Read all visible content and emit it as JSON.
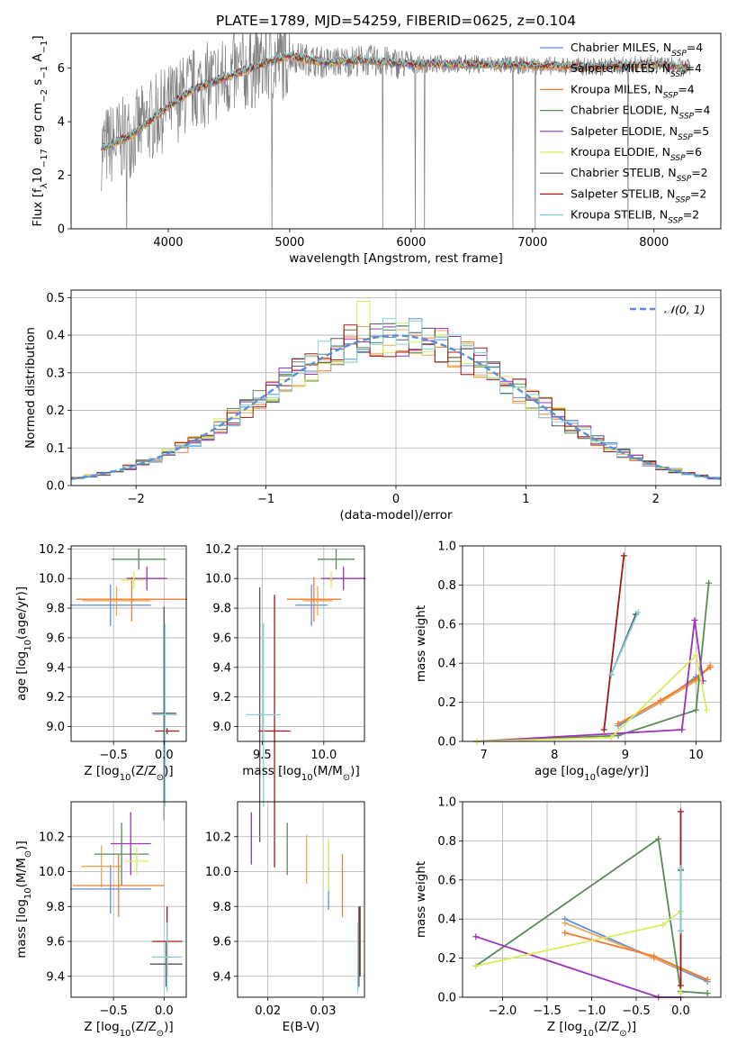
{
  "figure": {
    "title": "PLATE=1789, MJD=54259, FIBERID=0625, z=0.104",
    "models": [
      {
        "name": "Chabrier MILES",
        "nssp": "4",
        "color": "#5b8ee6"
      },
      {
        "name": "Salpeter MILES",
        "nssp": "4",
        "color": "#f0a850"
      },
      {
        "name": "Kroupa MILES",
        "nssp": "4",
        "color": "#f07c30"
      },
      {
        "name": "Chabrier ELODIE",
        "nssp": "4",
        "color": "#5a8a5a"
      },
      {
        "name": "Salpeter ELODIE",
        "nssp": "5",
        "color": "#9a34b8"
      },
      {
        "name": "Kroupa ELODIE",
        "nssp": "6",
        "color": "#d8ec5c"
      },
      {
        "name": "Chabrier STELIB",
        "nssp": "2",
        "color": "#555555"
      },
      {
        "name": "Salpeter STELIB",
        "nssp": "2",
        "color": "#a01818"
      },
      {
        "name": "Kroupa STELIB",
        "nssp": "2",
        "color": "#7fd4dc"
      }
    ]
  },
  "chart_data": [
    {
      "id": "spectrum",
      "type": "line",
      "xlabel": "wavelength [Angstrom, rest frame]",
      "ylabel_parts": [
        "Flux [f",
        "λ",
        "10",
        "−17",
        " erg cm",
        "−2",
        " s",
        "−1",
        " A",
        "−1",
        "]"
      ],
      "xlim": [
        3200,
        8550
      ],
      "ylim": [
        0,
        7.3
      ],
      "xticks": [
        4000,
        5000,
        6000,
        7000,
        8000
      ],
      "yticks": [
        0,
        2,
        4,
        6
      ],
      "series_note": "observed data (grey) with overlapping model fits",
      "continuum": [
        [
          3450,
          3.0
        ],
        [
          3700,
          3.5
        ],
        [
          3950,
          4.4
        ],
        [
          4200,
          5.2
        ],
        [
          4500,
          5.7
        ],
        [
          4800,
          6.2
        ],
        [
          5000,
          6.45
        ],
        [
          5300,
          6.2
        ],
        [
          5600,
          6.3
        ],
        [
          6000,
          6.15
        ],
        [
          6500,
          6.15
        ],
        [
          7000,
          6.1
        ],
        [
          7500,
          6.05
        ],
        [
          8000,
          6.15
        ],
        [
          8300,
          6.0
        ]
      ],
      "grid": false,
      "legend": "top-right"
    },
    {
      "id": "residuals",
      "type": "histogram",
      "xlabel": "(data-model)/error",
      "ylabel": "Normed distribution",
      "xlim": [
        -2.5,
        2.5
      ],
      "ylim": [
        0,
        0.52
      ],
      "xticks": [
        -2,
        -1,
        0,
        1,
        2
      ],
      "yticks": [
        0.0,
        0.1,
        0.2,
        0.3,
        0.4,
        0.5
      ],
      "reference_curve": "N(0,1)",
      "legend_label": "𝒩(0, 1)",
      "grid": true,
      "legend": "top-right"
    },
    {
      "id": "age_vs_Z",
      "type": "errorbar",
      "xlabel_parts": [
        "Z [log",
        "10",
        "(Z/Z",
        "⊙",
        ")]"
      ],
      "ylabel_parts": [
        "age  [log",
        "10",
        "(age/yr)]"
      ],
      "xlim": [
        -0.92,
        0.22
      ],
      "ylim": [
        8.9,
        10.22
      ],
      "xticks": [
        -0.5,
        0.0
      ],
      "xticklabels": [
        "−0.5",
        "0.0"
      ],
      "yticks": [
        9.0,
        9.2,
        9.4,
        9.6,
        9.8,
        10.0,
        10.2
      ],
      "points": [
        {
          "model": 0,
          "x": -0.53,
          "y": 9.82,
          "xerr": 0.4,
          "yerr": 0.14
        },
        {
          "model": 1,
          "x": -0.47,
          "y": 9.85,
          "xerr": 0.34,
          "yerr": 0.1
        },
        {
          "model": 2,
          "x": -0.32,
          "y": 9.86,
          "xerr": 0.55,
          "yerr": 0.15
        },
        {
          "model": 3,
          "x": -0.25,
          "y": 10.13,
          "xerr": 0.27,
          "yerr": 0.07
        },
        {
          "model": 4,
          "x": -0.17,
          "y": 10.0,
          "xerr": 0.2,
          "yerr": 0.08
        },
        {
          "model": 5,
          "x": -0.3,
          "y": 9.99,
          "xerr": 0.12,
          "yerr": 0.06
        },
        {
          "model": 6,
          "x": 0.0,
          "y": 9.09,
          "xerr": 0.12,
          "yerr": 0.72
        },
        {
          "model": 7,
          "x": 0.03,
          "y": 8.97,
          "xerr": 0.12,
          "yerr": 0.02
        },
        {
          "model": 8,
          "x": 0.01,
          "y": 9.08,
          "xerr": 0.12,
          "yerr": 0.62
        }
      ],
      "grid": true
    },
    {
      "id": "age_vs_mass",
      "type": "errorbar",
      "xlabel_parts": [
        "mass [log",
        "10",
        "(M/M",
        "⊙",
        ")]"
      ],
      "xlim": [
        9.3,
        10.33
      ],
      "ylim": [
        8.9,
        10.22
      ],
      "xticks": [
        9.5,
        10.0
      ],
      "xticklabels": [
        "9.5",
        "10.0"
      ],
      "yticks": [
        9.0,
        9.2,
        9.4,
        9.6,
        9.8,
        10.0,
        10.2
      ],
      "points": [
        {
          "model": 0,
          "x": 9.9,
          "y": 9.82,
          "xerr": 0.13,
          "yerr": 0.14
        },
        {
          "model": 1,
          "x": 9.95,
          "y": 9.85,
          "xerr": 0.12,
          "yerr": 0.1
        },
        {
          "model": 2,
          "x": 9.92,
          "y": 9.86,
          "xerr": 0.22,
          "yerr": 0.15
        },
        {
          "model": 3,
          "x": 10.1,
          "y": 10.13,
          "xerr": 0.15,
          "yerr": 0.07
        },
        {
          "model": 4,
          "x": 10.16,
          "y": 10.0,
          "xerr": 0.18,
          "yerr": 0.08
        },
        {
          "model": 5,
          "x": 10.06,
          "y": 9.99,
          "xerr": 0.02,
          "yerr": 0.06
        },
        {
          "model": 6,
          "x": 9.48,
          "y": 9.08,
          "xerr": 0.02,
          "yerr": 0.86
        },
        {
          "model": 7,
          "x": 9.6,
          "y": 8.97,
          "xerr": 0.13,
          "yerr": 0.92
        },
        {
          "model": 8,
          "x": 9.51,
          "y": 9.08,
          "xerr": 0.14,
          "yerr": 0.62
        }
      ],
      "grid": true
    },
    {
      "id": "massweight_vs_age",
      "type": "line",
      "xlabel_parts": [
        "age  [log",
        "10",
        "(age/yr)]"
      ],
      "ylabel": "mass weight",
      "xlim": [
        6.7,
        10.35
      ],
      "ylim": [
        0,
        1.0
      ],
      "xticks": [
        7,
        8,
        9,
        10
      ],
      "yticks": [
        0.0,
        0.2,
        0.4,
        0.6,
        0.8,
        1.0
      ],
      "series": [
        {
          "model": 0,
          "points": [
            [
              8.9,
              0.08
            ],
            [
              9.5,
              0.2
            ],
            [
              10.0,
              0.33
            ],
            [
              10.2,
              0.38
            ]
          ]
        },
        {
          "model": 1,
          "points": [
            [
              8.9,
              0.09
            ],
            [
              9.5,
              0.2
            ],
            [
              10.0,
              0.31
            ],
            [
              10.2,
              0.39
            ]
          ]
        },
        {
          "model": 2,
          "points": [
            [
              8.9,
              0.09
            ],
            [
              9.5,
              0.21
            ],
            [
              10.0,
              0.32
            ],
            [
              10.2,
              0.38
            ]
          ]
        },
        {
          "model": 3,
          "points": [
            [
              6.9,
              0.0
            ],
            [
              8.9,
              0.03
            ],
            [
              10.0,
              0.16
            ],
            [
              10.18,
              0.81
            ]
          ]
        },
        {
          "model": 4,
          "points": [
            [
              6.9,
              0.0
            ],
            [
              9.8,
              0.06
            ],
            [
              9.98,
              0.62
            ],
            [
              10.1,
              0.31
            ]
          ]
        },
        {
          "model": 5,
          "points": [
            [
              6.9,
              0.0
            ],
            [
              8.8,
              0.02
            ],
            [
              10.0,
              0.44
            ],
            [
              10.15,
              0.16
            ]
          ]
        },
        {
          "model": 6,
          "points": [
            [
              8.8,
              0.34
            ],
            [
              9.15,
              0.65
            ]
          ]
        },
        {
          "model": 7,
          "points": [
            [
              8.7,
              0.06
            ],
            [
              8.98,
              0.95
            ]
          ]
        },
        {
          "model": 8,
          "points": [
            [
              8.8,
              0.34
            ],
            [
              9.18,
              0.66
            ]
          ]
        }
      ],
      "grid": true
    },
    {
      "id": "mass_vs_Z",
      "type": "errorbar",
      "xlabel_parts": [
        "Z [log",
        "10",
        "(Z/Z",
        "⊙",
        ")]"
      ],
      "ylabel_parts": [
        "mass [log",
        "10",
        "(M/M",
        "⊙",
        ")]"
      ],
      "xlim": [
        -0.92,
        0.22
      ],
      "ylim": [
        9.28,
        10.4
      ],
      "xticks": [
        -0.5,
        0.0
      ],
      "xticklabels": [
        "−0.5",
        "0.0"
      ],
      "yticks": [
        9.4,
        9.6,
        9.8,
        10.0,
        10.2
      ],
      "points": [
        {
          "model": 0,
          "x": -0.53,
          "y": 9.9,
          "xerr": 0.4,
          "yerr": 0.14
        },
        {
          "model": 1,
          "x": -0.62,
          "y": 10.03,
          "xerr": 0.2,
          "yerr": 0.12
        },
        {
          "model": 2,
          "x": -0.45,
          "y": 9.92,
          "xerr": 0.45,
          "yerr": 0.18
        },
        {
          "model": 3,
          "x": -0.42,
          "y": 10.1,
          "xerr": 0.27,
          "yerr": 0.18
        },
        {
          "model": 4,
          "x": -0.33,
          "y": 10.16,
          "xerr": 0.2,
          "yerr": 0.18
        },
        {
          "model": 5,
          "x": -0.27,
          "y": 10.06,
          "xerr": 0.12,
          "yerr": 0.08
        },
        {
          "model": 6,
          "x": 0.02,
          "y": 9.47,
          "xerr": 0.16,
          "yerr": 0.13
        },
        {
          "model": 7,
          "x": 0.03,
          "y": 9.6,
          "xerr": 0.15,
          "yerr": 0.2
        },
        {
          "model": 8,
          "x": 0.03,
          "y": 9.51,
          "xerr": 0.15,
          "yerr": 0.2
        }
      ],
      "grid": true
    },
    {
      "id": "mass_vs_ebv",
      "type": "errorbar",
      "xlabel": "E(B-V)",
      "xlim": [
        0.0145,
        0.0375
      ],
      "ylim": [
        9.28,
        10.4
      ],
      "xticks": [
        0.02,
        0.03
      ],
      "xticklabels": [
        "0.02",
        "0.03"
      ],
      "yticks": [
        9.4,
        9.6,
        9.8,
        10.0,
        10.2
      ],
      "points": [
        {
          "model": 0,
          "x": 0.031,
          "y": 9.9,
          "yerr": 0.12
        },
        {
          "model": 1,
          "x": 0.027,
          "y": 10.07,
          "yerr": 0.14
        },
        {
          "model": 2,
          "x": 0.0335,
          "y": 9.92,
          "yerr": 0.18
        },
        {
          "model": 3,
          "x": 0.0235,
          "y": 10.13,
          "yerr": 0.15
        },
        {
          "model": 4,
          "x": 0.017,
          "y": 10.19,
          "yerr": 0.15
        },
        {
          "model": 5,
          "x": 0.031,
          "y": 10.04,
          "yerr": 0.15
        },
        {
          "model": 6,
          "x": 0.0365,
          "y": 9.57,
          "yerr": 0.23
        },
        {
          "model": 7,
          "x": 0.0367,
          "y": 9.6,
          "yerr": 0.2
        },
        {
          "model": 8,
          "x": 0.0363,
          "y": 9.51,
          "yerr": 0.2
        }
      ],
      "grid": true
    },
    {
      "id": "massweight_vs_Z",
      "type": "line",
      "xlabel_parts": [
        "Z [log",
        "10",
        "(Z/Z",
        "⊙",
        ")]"
      ],
      "ylabel": "mass weight",
      "xlim": [
        -2.45,
        0.45
      ],
      "ylim": [
        0,
        1.0
      ],
      "xticks": [
        -2.0,
        -1.5,
        -1.0,
        -0.5,
        0.0
      ],
      "xticklabels": [
        "−2.0",
        "−1.5",
        "−1.0",
        "−0.5",
        "0.0"
      ],
      "yticks": [
        0.0,
        0.2,
        0.4,
        0.6,
        0.8,
        1.0
      ],
      "series": [
        {
          "model": 0,
          "points": [
            [
              -1.3,
              0.4
            ],
            [
              -0.3,
              0.2
            ],
            [
              0.3,
              0.08
            ]
          ]
        },
        {
          "model": 1,
          "points": [
            [
              -1.3,
              0.38
            ],
            [
              -0.3,
              0.2
            ],
            [
              0.3,
              0.09
            ]
          ]
        },
        {
          "model": 2,
          "points": [
            [
              -1.3,
              0.33
            ],
            [
              -0.3,
              0.21
            ],
            [
              0.3,
              0.09
            ]
          ]
        },
        {
          "model": 3,
          "points": [
            [
              -2.3,
              0.16
            ],
            [
              -0.25,
              0.81
            ],
            [
              0.0,
              0.03
            ],
            [
              0.3,
              0.02
            ]
          ]
        },
        {
          "model": 4,
          "points": [
            [
              -2.3,
              0.31
            ],
            [
              -0.25,
              0.0
            ],
            [
              0.0,
              0.0
            ]
          ]
        },
        {
          "model": 5,
          "points": [
            [
              -2.3,
              0.16
            ],
            [
              -0.2,
              0.37
            ],
            [
              0.0,
              0.44
            ],
            [
              0.0,
              0.02
            ]
          ]
        },
        {
          "model": 6,
          "points": [
            [
              0.0,
              0.34
            ],
            [
              0.0,
              0.65
            ]
          ]
        },
        {
          "model": 7,
          "points": [
            [
              0.0,
              0.06
            ],
            [
              0.0,
              0.95
            ]
          ]
        },
        {
          "model": 8,
          "points": [
            [
              0.0,
              0.34
            ],
            [
              0.0,
              0.66
            ]
          ]
        }
      ],
      "grid": true
    }
  ]
}
